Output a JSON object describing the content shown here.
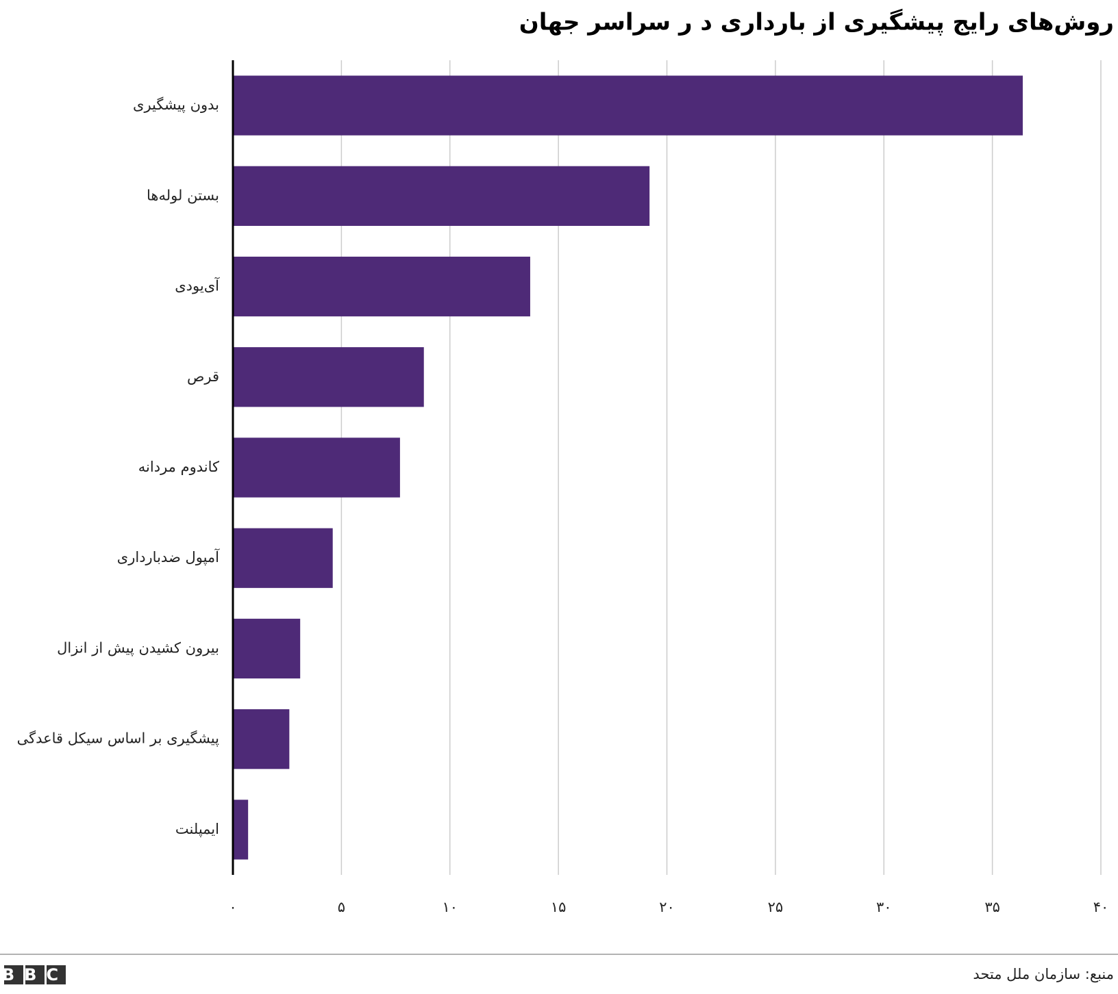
{
  "chart_data": {
    "type": "barh",
    "title": "روش‌های رایج پیشگیری از بارداری د ر سراسر جهان",
    "categories": [
      "بدون پیشگیری",
      "بستن لوله‌ها",
      "آی‌یودی",
      "قرص",
      "کاندوم مردانه",
      "آمپول ضدبارداری",
      "بیرون کشیدن پیش از انزال",
      "پیشگیری بر اساس سیکل قاعدگی",
      "ایمپلنت"
    ],
    "values": [
      36.4,
      19.2,
      13.7,
      8.8,
      7.7,
      4.6,
      3.1,
      2.6,
      0.7
    ],
    "color": "#4e2a77",
    "xlim": [
      0,
      40
    ],
    "xticks": [
      {
        "value": 0,
        "label": "۰"
      },
      {
        "value": 5,
        "label": "۵"
      },
      {
        "value": 10,
        "label": "۱۰"
      },
      {
        "value": 15,
        "label": "۱۵"
      },
      {
        "value": 20,
        "label": "۲۰"
      },
      {
        "value": 25,
        "label": "۲۵"
      },
      {
        "value": 30,
        "label": "۳۰"
      },
      {
        "value": 35,
        "label": "۳۵"
      },
      {
        "value": 40,
        "label": "۴۰"
      }
    ],
    "grid": true,
    "source": "منبع: سازمان ملل متحد",
    "logo": "BBC"
  }
}
